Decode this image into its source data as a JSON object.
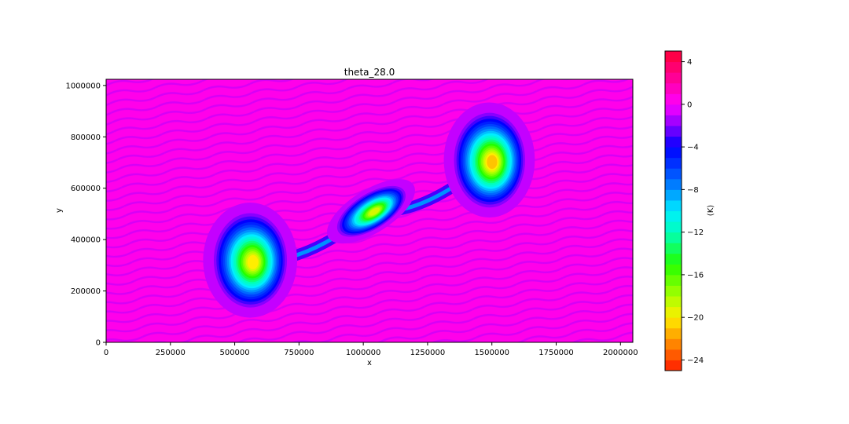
{
  "chart_data": {
    "type": "heatmap",
    "title": "theta_28.0",
    "xlabel": "x",
    "ylabel": "y",
    "xlim": [
      0,
      2048000
    ],
    "ylim": [
      0,
      1024000
    ],
    "x_ticks": [
      0,
      250000,
      500000,
      750000,
      1000000,
      1250000,
      1500000,
      1750000,
      2000000
    ],
    "x_tick_labels": [
      "0",
      "250000",
      "500000",
      "750000",
      "1000000",
      "1250000",
      "1500000",
      "1750000",
      "2000000"
    ],
    "y_ticks": [
      0,
      200000,
      400000,
      600000,
      800000,
      1000000
    ],
    "y_tick_labels": [
      "0",
      "200000",
      "400000",
      "600000",
      "800000",
      "1000000"
    ],
    "colorbar": {
      "label": "(K)",
      "range": [
        -25,
        5
      ],
      "level_step": 1,
      "ticks": [
        4,
        0,
        -4,
        -8,
        -12,
        -16,
        -20,
        -24
      ],
      "tick_labels": [
        "4",
        "0",
        "−4",
        "−8",
        "−12",
        "−16",
        "−20",
        "−24"
      ],
      "colormap": "gist_rainbow_r",
      "stops": [
        {
          "value": -25,
          "color": "#ff1a00"
        },
        {
          "value": -22,
          "color": "#ff9900"
        },
        {
          "value": -20,
          "color": "#ffee00"
        },
        {
          "value": -18,
          "color": "#aaff00"
        },
        {
          "value": -15,
          "color": "#22ff00"
        },
        {
          "value": -12,
          "color": "#00ffbb"
        },
        {
          "value": -10,
          "color": "#00eeff"
        },
        {
          "value": -8,
          "color": "#0090ff"
        },
        {
          "value": -6,
          "color": "#0040ff"
        },
        {
          "value": -4,
          "color": "#0000ff"
        },
        {
          "value": -2,
          "color": "#8800ff"
        },
        {
          "value": 0,
          "color": "#ff00ff"
        },
        {
          "value": 2,
          "color": "#ff00aa"
        },
        {
          "value": 5,
          "color": "#ff0033"
        }
      ]
    },
    "background_value": 0.5,
    "features": [
      {
        "name": "left-vortex",
        "cx": 560000,
        "cy": 320000,
        "rx": 155000,
        "ry": 200000,
        "rot": 0,
        "min": -20
      },
      {
        "name": "center-blob",
        "cx": 1030000,
        "cy": 510000,
        "rx": 165000,
        "ry": 75000,
        "rot": 32,
        "min": -19
      },
      {
        "name": "right-vortex",
        "cx": 1490000,
        "cy": 710000,
        "rx": 150000,
        "ry": 200000,
        "rot": 0,
        "min": -21
      }
    ]
  }
}
